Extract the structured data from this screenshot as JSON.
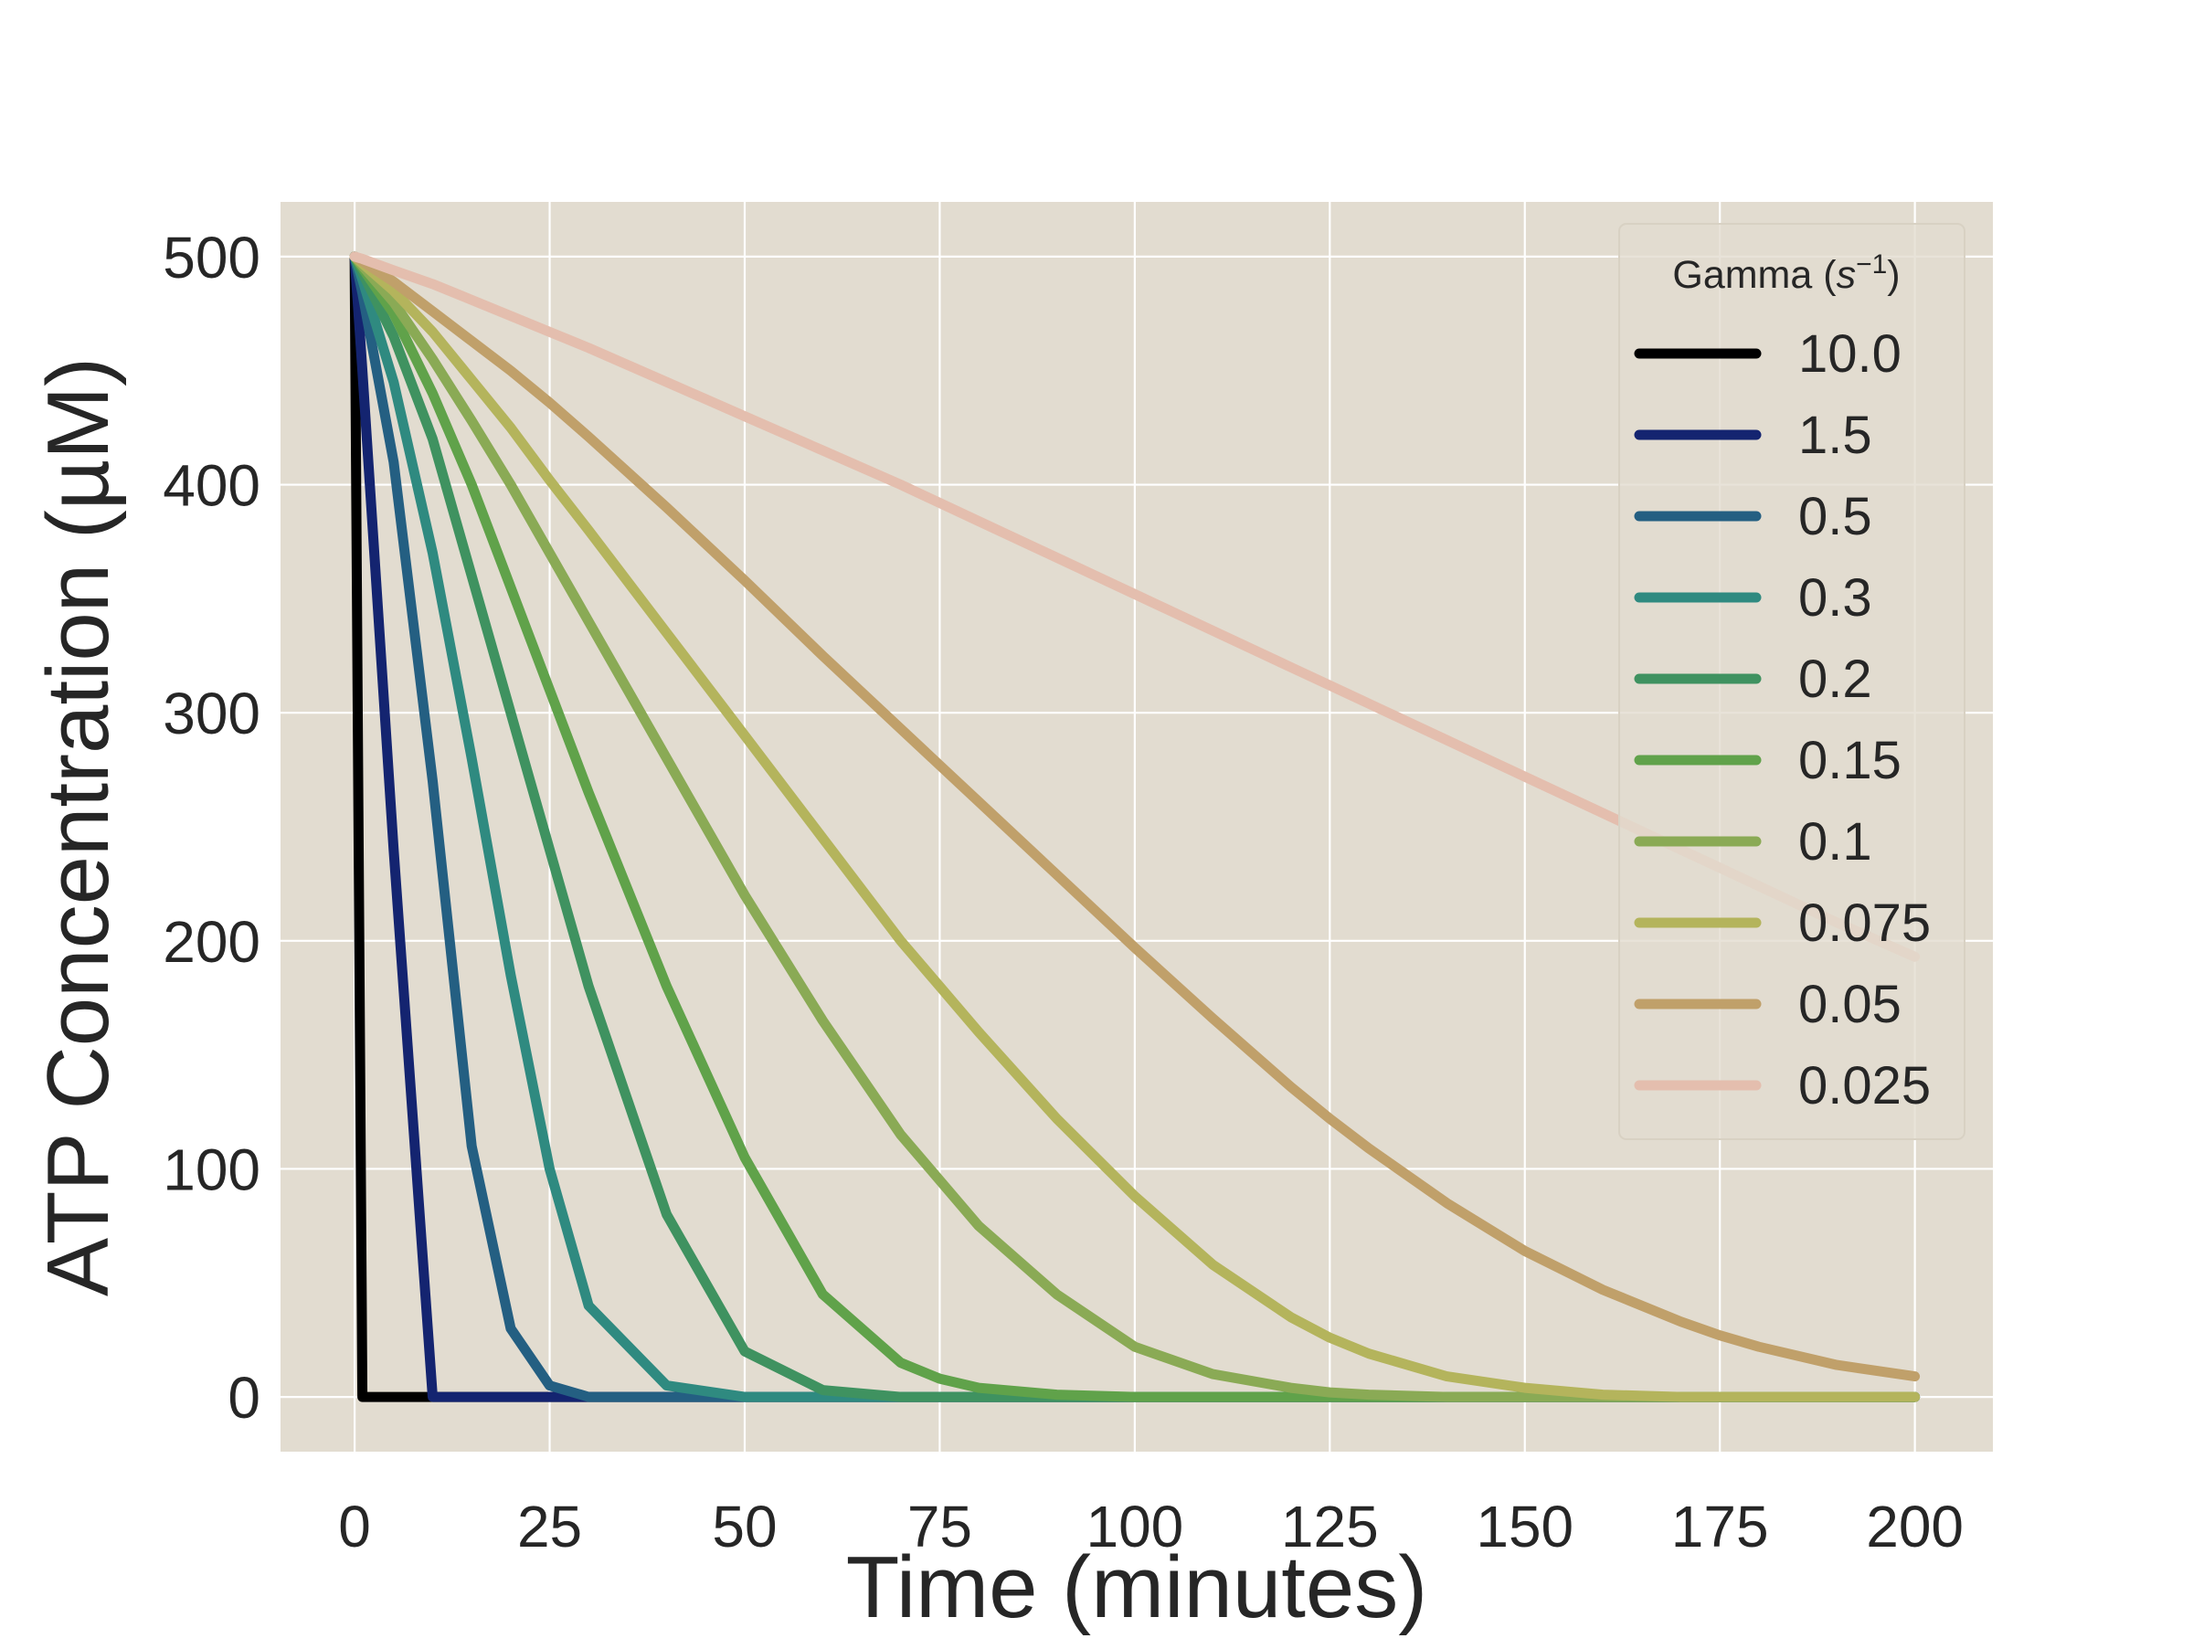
{
  "chart_data": {
    "type": "line",
    "title": "",
    "xlabel": "Time (minutes)",
    "ylabel": "ATP Concentration (µM)",
    "xlim": [
      -9.5,
      210
    ],
    "ylim": [
      -24,
      524
    ],
    "x_ticks": [
      0,
      25,
      50,
      75,
      100,
      125,
      150,
      175,
      200
    ],
    "y_ticks": [
      0,
      100,
      200,
      300,
      400,
      500
    ],
    "x_tick_labels": [
      "0",
      "25",
      "50",
      "75",
      "100",
      "125",
      "150",
      "175",
      "200"
    ],
    "y_tick_labels": [
      "0",
      "100",
      "200",
      "300",
      "400",
      "500"
    ],
    "grid": true,
    "background": "#e2dcd0",
    "grid_color": "#ffffff",
    "legend": {
      "title": "Gamma (s⁻¹)",
      "title_text": "Gamma (",
      "title_var": "s",
      "title_exp": "−1",
      "title_close": ")",
      "placement": "upper right"
    },
    "x": [
      0,
      1,
      5,
      10,
      15,
      20,
      25,
      30,
      40,
      50,
      60,
      70,
      75,
      80,
      90,
      100,
      110,
      120,
      125,
      130,
      140,
      150,
      160,
      170,
      175,
      180,
      190,
      200
    ],
    "series": [
      {
        "name": "10.0",
        "color": "#000000",
        "values": [
          500,
          0,
          0,
          0,
          0,
          0,
          0,
          0,
          0,
          0,
          0,
          0,
          0,
          0,
          0,
          0,
          0,
          0,
          0,
          0,
          0,
          0,
          0,
          0,
          0,
          0,
          0,
          0
        ]
      },
      {
        "name": "1.5",
        "color": "#142470",
        "values": [
          500,
          450,
          240,
          0,
          0,
          0,
          0,
          0,
          0,
          0,
          0,
          0,
          0,
          0,
          0,
          0,
          0,
          0,
          0,
          0,
          0,
          0,
          0,
          0,
          0,
          0,
          0,
          0
        ]
      },
      {
        "name": "0.5",
        "color": "#245f82",
        "values": [
          500,
          484,
          410,
          270,
          110,
          30,
          5,
          0,
          0,
          0,
          0,
          0,
          0,
          0,
          0,
          0,
          0,
          0,
          0,
          0,
          0,
          0,
          0,
          0,
          0,
          0,
          0,
          0
        ]
      },
      {
        "name": "0.3",
        "color": "#2f8a80",
        "values": [
          500,
          490,
          445,
          370,
          280,
          185,
          100,
          40,
          5,
          0,
          0,
          0,
          0,
          0,
          0,
          0,
          0,
          0,
          0,
          0,
          0,
          0,
          0,
          0,
          0,
          0,
          0,
          0
        ]
      },
      {
        "name": "0.2",
        "color": "#3f9260",
        "values": [
          500,
          493,
          465,
          420,
          360,
          300,
          240,
          180,
          80,
          20,
          3,
          0,
          0,
          0,
          0,
          0,
          0,
          0,
          0,
          0,
          0,
          0,
          0,
          0,
          0,
          0,
          0,
          0
        ]
      },
      {
        "name": "0.15",
        "color": "#60a24a",
        "values": [
          500,
          495,
          475,
          440,
          400,
          355,
          310,
          265,
          180,
          105,
          45,
          15,
          8,
          4,
          1,
          0,
          0,
          0,
          0,
          0,
          0,
          0,
          0,
          0,
          0,
          0,
          0,
          0
        ]
      },
      {
        "name": "0.1",
        "color": "#8aaa55",
        "values": [
          500,
          496,
          480,
          455,
          428,
          400,
          370,
          340,
          280,
          220,
          165,
          115,
          95,
          75,
          45,
          22,
          10,
          4,
          2,
          1,
          0,
          0,
          0,
          0,
          0,
          0,
          0,
          0
        ]
      },
      {
        "name": "0.075",
        "color": "#b4b45c",
        "values": [
          500,
          497,
          485,
          467,
          446,
          425,
          402,
          380,
          335,
          290,
          245,
          200,
          180,
          160,
          122,
          88,
          58,
          35,
          26,
          19,
          9,
          4,
          1,
          0,
          0,
          0,
          0,
          0
        ]
      },
      {
        "name": "0.05",
        "color": "#c0a06a",
        "values": [
          500,
          498,
          489,
          476,
          463,
          450,
          436,
          421,
          390,
          358,
          325,
          293,
          277,
          261,
          229,
          197,
          166,
          136,
          122,
          109,
          85,
          64,
          47,
          33,
          27,
          22,
          14,
          9
        ]
      },
      {
        "name": "0.025",
        "color": "#e4beae",
        "values": [
          500,
          499,
          494,
          488,
          481,
          474,
          467,
          460,
          445,
          430,
          415,
          400,
          392,
          384,
          368,
          352,
          336,
          320,
          312,
          304,
          288,
          272,
          256,
          240,
          232,
          224,
          208,
          193
        ]
      }
    ]
  }
}
